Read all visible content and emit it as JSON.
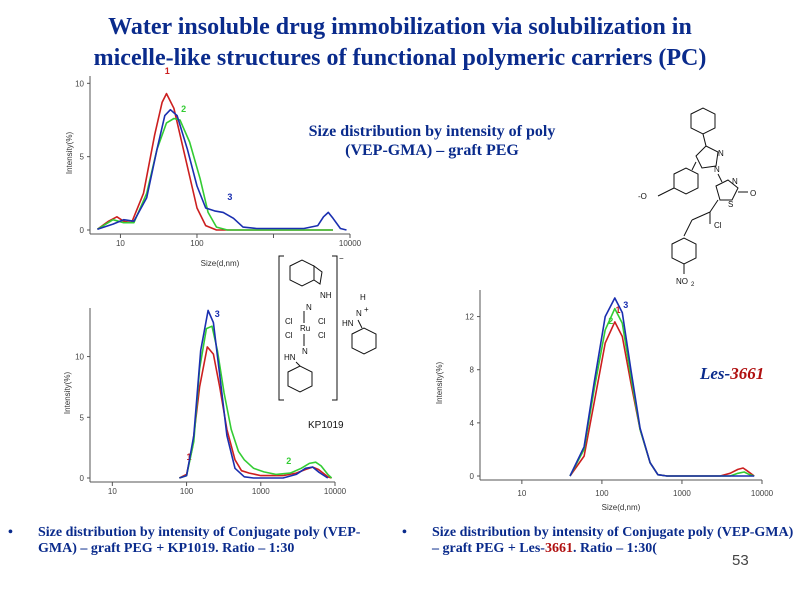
{
  "slide": {
    "title_line1": "Water insoluble drug immobilization via solubilization in",
    "title_line2": "micelle-like structures of functional polymeric carriers (PC)",
    "caption_top_line1": "Size distribution  by intensity of poly",
    "caption_top_line2": "(VEP-GMA) – graft PEG",
    "bullet_left": "Size distribution by intensity of Conjugate poly (VEP-GMA) – graft PEG + KP1019. Ratio – 1:30",
    "bullet_right_pre": "Size distribution by intensity of Conjugate poly (VEP-GMA) – graft PEG + Les-",
    "bullet_right_num": "3661",
    "bullet_right_post": ". Ratio – 1:30(",
    "bullet_symbol": "•",
    "les_label_pre": "Les-",
    "les_label_num": "3661",
    "page_number": "53",
    "kp_label": "KP1019",
    "colors": {
      "title": "#0a2b8c",
      "accent_red": "#b01010",
      "series1": "#cc1f1f",
      "series2": "#33cc33",
      "series3": "#1a2fb0"
    }
  },
  "chart_data": [
    {
      "id": "chart1",
      "type": "line",
      "title": "",
      "xlabel": "Size(d,nm)",
      "ylabel": "Intensity(%)",
      "x_scale": "log",
      "xlim": [
        4,
        10000
      ],
      "ylim": [
        0,
        10.5
      ],
      "xticks": [
        10,
        100,
        1000,
        10000
      ],
      "xtick_labels": [
        "10",
        "100",
        "",
        "10000"
      ],
      "yticks": [
        0,
        5,
        10
      ],
      "ytick_labels": [
        "0",
        "5",
        "10"
      ],
      "series": [
        {
          "name": "1",
          "color": "#cc1f1f",
          "points": [
            [
              5,
              0.05
            ],
            [
              7,
              0.6
            ],
            [
              9,
              0.9
            ],
            [
              11,
              0.6
            ],
            [
              14,
              0.5
            ],
            [
              20,
              2.5
            ],
            [
              28,
              6.5
            ],
            [
              35,
              8.7
            ],
            [
              40,
              9.3
            ],
            [
              50,
              8.3
            ],
            [
              70,
              5.0
            ],
            [
              100,
              1.5
            ],
            [
              130,
              0.3
            ],
            [
              180,
              0.0
            ],
            [
              6000,
              0.0
            ]
          ]
        },
        {
          "name": "2",
          "color": "#33cc33",
          "points": [
            [
              5,
              0.05
            ],
            [
              8,
              0.7
            ],
            [
              11,
              0.5
            ],
            [
              15,
              0.5
            ],
            [
              22,
              2.5
            ],
            [
              30,
              5.5
            ],
            [
              40,
              7.3
            ],
            [
              50,
              7.6
            ],
            [
              60,
              7.5
            ],
            [
              80,
              6.0
            ],
            [
              110,
              3.5
            ],
            [
              140,
              1.2
            ],
            [
              180,
              0.2
            ],
            [
              250,
              0.0
            ],
            [
              6000,
              0.0
            ]
          ]
        },
        {
          "name": "3",
          "color": "#1a2fb0",
          "points": [
            [
              5,
              0.05
            ],
            [
              8,
              0.4
            ],
            [
              11,
              0.7
            ],
            [
              15,
              0.6
            ],
            [
              22,
              2.2
            ],
            [
              30,
              5.5
            ],
            [
              38,
              7.8
            ],
            [
              45,
              8.2
            ],
            [
              55,
              7.8
            ],
            [
              75,
              5.5
            ],
            [
              100,
              3.0
            ],
            [
              130,
              1.5
            ],
            [
              170,
              1.3
            ],
            [
              220,
              1.2
            ],
            [
              300,
              0.8
            ],
            [
              400,
              0.2
            ],
            [
              600,
              0.1
            ],
            [
              2500,
              0.1
            ],
            [
              3800,
              0.3
            ],
            [
              4500,
              0.9
            ],
            [
              5200,
              1.2
            ],
            [
              6000,
              0.8
            ],
            [
              7500,
              0.1
            ],
            [
              9000,
              0.0
            ]
          ]
        }
      ]
    },
    {
      "id": "chart2",
      "type": "line",
      "title": "",
      "xlabel": "",
      "ylabel": "Intensity(%)",
      "x_scale": "log",
      "xlim": [
        5,
        10000
      ],
      "ylim": [
        0,
        14
      ],
      "xticks": [
        10,
        100,
        1000,
        10000
      ],
      "xtick_labels": [
        "10",
        "100",
        "1000",
        "10000"
      ],
      "yticks": [
        0,
        5,
        10
      ],
      "ytick_labels": [
        "0",
        "5",
        "10"
      ],
      "series": [
        {
          "name": "1",
          "color": "#cc1f1f",
          "points": [
            [
              80,
              0.0
            ],
            [
              100,
              0.3
            ],
            [
              120,
              2.5
            ],
            [
              150,
              7.5
            ],
            [
              190,
              10.8
            ],
            [
              230,
              10.2
            ],
            [
              280,
              7.5
            ],
            [
              350,
              4.0
            ],
            [
              450,
              1.5
            ],
            [
              550,
              0.6
            ],
            [
              700,
              0.4
            ],
            [
              1000,
              0.2
            ],
            [
              2000,
              0.2
            ],
            [
              3000,
              0.4
            ],
            [
              4000,
              0.7
            ],
            [
              5000,
              0.9
            ],
            [
              6000,
              0.7
            ],
            [
              8000,
              0.1
            ],
            [
              9000,
              0.0
            ]
          ]
        },
        {
          "name": "2",
          "color": "#33cc33",
          "points": [
            [
              80,
              0.0
            ],
            [
              100,
              0.2
            ],
            [
              125,
              3.0
            ],
            [
              150,
              9.0
            ],
            [
              185,
              12.3
            ],
            [
              220,
              12.5
            ],
            [
              260,
              10.5
            ],
            [
              320,
              7.0
            ],
            [
              400,
              4.0
            ],
            [
              500,
              2.2
            ],
            [
              600,
              1.5
            ],
            [
              800,
              0.8
            ],
            [
              1100,
              0.5
            ],
            [
              1600,
              0.3
            ],
            [
              2500,
              0.4
            ],
            [
              3500,
              0.8
            ],
            [
              4500,
              1.2
            ],
            [
              5500,
              1.3
            ],
            [
              6500,
              1.0
            ],
            [
              8000,
              0.3
            ],
            [
              9000,
              0.0
            ]
          ]
        },
        {
          "name": "3",
          "color": "#1a2fb0",
          "points": [
            [
              80,
              0.0
            ],
            [
              100,
              0.2
            ],
            [
              125,
              3.5
            ],
            [
              155,
              10.5
            ],
            [
              195,
              13.8
            ],
            [
              230,
              12.8
            ],
            [
              280,
              8.5
            ],
            [
              350,
              3.5
            ],
            [
              450,
              0.8
            ],
            [
              600,
              0.1
            ],
            [
              800,
              0.0
            ],
            [
              2000,
              0.0
            ],
            [
              3000,
              0.3
            ],
            [
              4000,
              0.8
            ],
            [
              5000,
              0.9
            ],
            [
              6000,
              0.5
            ],
            [
              8000,
              0.0
            ]
          ]
        }
      ]
    },
    {
      "id": "chart3",
      "type": "line",
      "title": "",
      "xlabel": "Size(d,nm)",
      "ylabel": "Intensity(%)",
      "x_scale": "log",
      "xlim": [
        3,
        10000
      ],
      "ylim": [
        0,
        14
      ],
      "xticks": [
        10,
        100,
        1000,
        10000
      ],
      "xtick_labels": [
        "10",
        "100",
        "1000",
        "10000"
      ],
      "yticks": [
        0,
        4,
        8,
        12
      ],
      "ytick_labels": [
        "0",
        "4",
        "8",
        "12"
      ],
      "series": [
        {
          "name": "1",
          "color": "#cc1f1f",
          "points": [
            [
              40,
              0.0
            ],
            [
              60,
              1.5
            ],
            [
              80,
              5.5
            ],
            [
              110,
              10.0
            ],
            [
              145,
              11.6
            ],
            [
              180,
              10.5
            ],
            [
              230,
              7.0
            ],
            [
              300,
              3.5
            ],
            [
              400,
              1.0
            ],
            [
              500,
              0.1
            ],
            [
              650,
              0.0
            ],
            [
              3000,
              0.0
            ],
            [
              4000,
              0.2
            ],
            [
              5000,
              0.5
            ],
            [
              5800,
              0.6
            ],
            [
              6500,
              0.4
            ],
            [
              8000,
              0.0
            ]
          ]
        },
        {
          "name": "2",
          "color": "#33cc33",
          "points": [
            [
              40,
              0.0
            ],
            [
              60,
              2.0
            ],
            [
              80,
              6.5
            ],
            [
              110,
              11.0
            ],
            [
              145,
              12.6
            ],
            [
              180,
              11.5
            ],
            [
              230,
              7.5
            ],
            [
              300,
              3.5
            ],
            [
              400,
              1.0
            ],
            [
              500,
              0.1
            ],
            [
              650,
              0.0
            ],
            [
              4000,
              0.0
            ],
            [
              5000,
              0.2
            ],
            [
              6000,
              0.3
            ],
            [
              7000,
              0.1
            ],
            [
              8000,
              0.0
            ]
          ]
        },
        {
          "name": "3",
          "color": "#1a2fb0",
          "points": [
            [
              40,
              0.0
            ],
            [
              60,
              2.2
            ],
            [
              80,
              7.0
            ],
            [
              110,
              12.0
            ],
            [
              145,
              13.4
            ],
            [
              180,
              12.3
            ],
            [
              230,
              8.0
            ],
            [
              300,
              3.6
            ],
            [
              400,
              1.0
            ],
            [
              500,
              0.1
            ],
            [
              650,
              0.0
            ],
            [
              8000,
              0.0
            ]
          ]
        }
      ]
    }
  ]
}
